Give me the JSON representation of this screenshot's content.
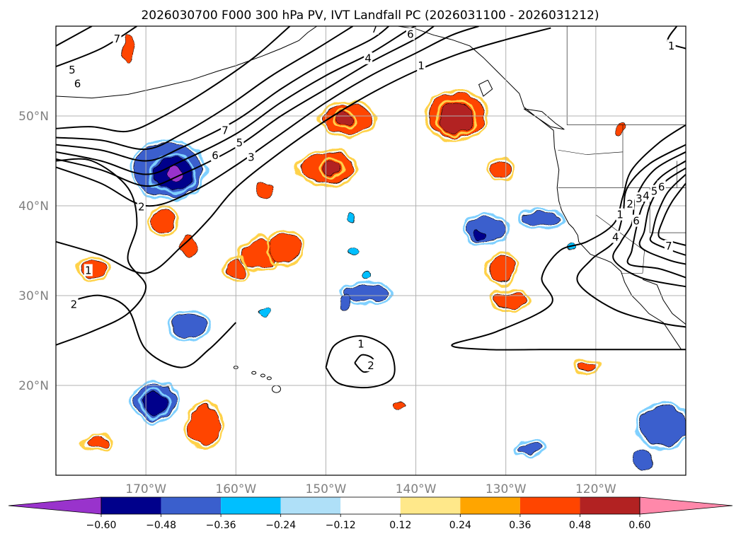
{
  "chart_data": {
    "type": "heatmap",
    "title": "2026030700 F000 300 hPa PV, IVT Landfall PC (2026031100 - 2026031212)",
    "xlabel": "",
    "ylabel": "",
    "lon_range": [
      -180,
      -110
    ],
    "lat_range": [
      10,
      60
    ],
    "lon_ticks": [
      -170,
      -160,
      -150,
      -140,
      -130,
      -120
    ],
    "lon_tick_labels": [
      "170°W",
      "160°W",
      "150°W",
      "140°W",
      "130°W",
      "120°W"
    ],
    "lat_ticks": [
      20,
      30,
      40,
      50
    ],
    "lat_tick_labels": [
      "20°N",
      "30°N",
      "40°N",
      "50°N"
    ],
    "grid": true,
    "colorbar": {
      "orientation": "horizontal",
      "placement": "bottom",
      "extend": "both",
      "levels": [
        -0.6,
        -0.48,
        -0.36,
        -0.24,
        -0.12,
        0.12,
        0.24,
        0.36,
        0.48,
        0.6
      ],
      "tick_labels": [
        "−0.60",
        "−0.48",
        "−0.36",
        "−0.24",
        "−0.12",
        "0.12",
        "0.24",
        "0.36",
        "0.48",
        "0.60"
      ],
      "colors": [
        "#9933cc",
        "#00008b",
        "#3a5fcd",
        "#00bfff",
        "#afe0f8",
        "#ffffff",
        "#ffe88a",
        "#ffa500",
        "#ff4500",
        "#b22222",
        "#ff88aa"
      ]
    },
    "contour_labels": [
      {
        "text": "7",
        "lon": -173.2,
        "lat": 58.6
      },
      {
        "text": "5",
        "lon": -178.2,
        "lat": 55.1
      },
      {
        "text": "6",
        "lon": -177.6,
        "lat": 53.6
      },
      {
        "text": "7",
        "lon": -161.2,
        "lat": 48.4
      },
      {
        "text": "5",
        "lon": -159.6,
        "lat": 47.0
      },
      {
        "text": "6",
        "lon": -162.3,
        "lat": 45.6
      },
      {
        "text": "3",
        "lon": -158.3,
        "lat": 45.4
      },
      {
        "text": "2",
        "lon": -170.5,
        "lat": 39.9
      },
      {
        "text": "1",
        "lon": -176.4,
        "lat": 32.8
      },
      {
        "text": "2",
        "lon": -178.0,
        "lat": 29.0
      },
      {
        "text": "4",
        "lon": -145.3,
        "lat": 56.4
      },
      {
        "text": "1",
        "lon": -139.4,
        "lat": 55.6
      },
      {
        "text": "7",
        "lon": -144.6,
        "lat": 59.7
      },
      {
        "text": "6",
        "lon": -140.6,
        "lat": 59.1
      },
      {
        "text": "1",
        "lon": -146.1,
        "lat": 24.6
      },
      {
        "text": "2",
        "lon": -145.0,
        "lat": 22.2
      },
      {
        "text": "1",
        "lon": -111.6,
        "lat": 57.8
      },
      {
        "text": "1",
        "lon": -117.3,
        "lat": 39.0
      },
      {
        "text": "2",
        "lon": -116.2,
        "lat": 40.2
      },
      {
        "text": "3",
        "lon": -115.2,
        "lat": 40.8
      },
      {
        "text": "4",
        "lon": -114.4,
        "lat": 41.1
      },
      {
        "text": "5",
        "lon": -113.5,
        "lat": 41.6
      },
      {
        "text": "6",
        "lon": -112.7,
        "lat": 42.1
      },
      {
        "text": "4",
        "lon": -117.8,
        "lat": 36.5
      },
      {
        "text": "6",
        "lon": -115.5,
        "lat": 38.3
      },
      {
        "text": "7",
        "lon": -111.9,
        "lat": 35.5
      }
    ],
    "pv_contours": [
      {
        "level": 1,
        "points": [
          [
            -180,
            36.0
          ],
          [
            -175,
            34.5
          ],
          [
            -170,
            32.5
          ],
          [
            -166,
            35.5
          ],
          [
            -163,
            38.5
          ],
          [
            -160,
            42
          ],
          [
            -155,
            46
          ],
          [
            -150,
            49.5
          ],
          [
            -145,
            52.5
          ],
          [
            -140,
            55
          ],
          [
            -135,
            57
          ],
          [
            -130,
            58.5
          ],
          [
            -125,
            59.8
          ]
        ]
      },
      {
        "level": 2,
        "points": [
          [
            -180,
            44.3
          ],
          [
            -175,
            42.5
          ],
          [
            -170,
            40
          ],
          [
            -165,
            41.5
          ],
          [
            -160,
            44.5
          ],
          [
            -155,
            48
          ],
          [
            -150,
            51.5
          ],
          [
            -145,
            54.5
          ],
          [
            -140,
            57
          ],
          [
            -136,
            59
          ],
          [
            -133,
            60
          ]
        ]
      },
      {
        "level": 3,
        "points": [
          [
            -180,
            45.2
          ],
          [
            -175,
            44
          ],
          [
            -170,
            42.2
          ],
          [
            -166,
            43.5
          ],
          [
            -160,
            46.5
          ],
          [
            -155,
            50
          ],
          [
            -150,
            53
          ],
          [
            -145,
            56
          ],
          [
            -140,
            58.6
          ],
          [
            -138,
            60
          ]
        ]
      },
      {
        "level": 4,
        "points": [
          [
            -180,
            46.0
          ],
          [
            -175,
            45
          ],
          [
            -170,
            43.5
          ],
          [
            -166,
            45
          ],
          [
            -160,
            48
          ],
          [
            -155,
            51.5
          ],
          [
            -150,
            54.5
          ],
          [
            -145,
            57
          ],
          [
            -141,
            59.5
          ],
          [
            -140,
            60
          ]
        ]
      },
      {
        "level": 5,
        "points": [
          [
            -180,
            46.8
          ],
          [
            -175,
            46.2
          ],
          [
            -170,
            45
          ],
          [
            -166,
            46.5
          ],
          [
            -160,
            49.5
          ],
          [
            -155,
            53
          ],
          [
            -150,
            56
          ],
          [
            -145,
            58.5
          ],
          [
            -143,
            60
          ]
        ]
      },
      {
        "level": 6,
        "points": [
          [
            -180,
            47.6
          ],
          [
            -175,
            47.3
          ],
          [
            -170,
            46.3
          ],
          [
            -166,
            48
          ],
          [
            -161,
            51
          ],
          [
            -156,
            54.5
          ],
          [
            -151,
            57.5
          ],
          [
            -147,
            60
          ]
        ]
      },
      {
        "level": 7,
        "points": [
          [
            -180,
            48.6
          ],
          [
            -176,
            48.8
          ],
          [
            -172,
            48.3
          ],
          [
            -168,
            50
          ],
          [
            -163,
            53
          ],
          [
            -158,
            56.5
          ],
          [
            -154,
            60
          ]
        ]
      },
      {
        "level": 1,
        "points": [
          [
            -180,
            24.5
          ],
          [
            -176,
            26
          ],
          [
            -172,
            28
          ],
          [
            -170,
            31
          ],
          [
            -172,
            34
          ],
          [
            -171,
            38
          ],
          [
            -172,
            42
          ],
          [
            -176,
            45
          ],
          [
            -180,
            45
          ]
        ]
      },
      {
        "level": 2,
        "points": [
          [
            -178,
            29.5
          ],
          [
            -175,
            30
          ],
          [
            -172,
            28.5
          ],
          [
            -170,
            24
          ],
          [
            -166,
            22
          ],
          [
            -163,
            24
          ],
          [
            -160,
            27
          ]
        ]
      },
      {
        "level": 6,
        "points": [
          [
            -180,
            55.5
          ],
          [
            -175,
            57.5
          ],
          [
            -171,
            60
          ]
        ]
      },
      {
        "level": 5,
        "points": [
          [
            -180,
            57.8
          ],
          [
            -176,
            60
          ]
        ]
      },
      {
        "level": 1,
        "points": [
          [
            -150,
            22
          ],
          [
            -149,
            24.5
          ],
          [
            -146,
            25.5
          ],
          [
            -143,
            24
          ],
          [
            -142.5,
            21
          ],
          [
            -145,
            19.8
          ],
          [
            -148.5,
            20.2
          ],
          [
            -150,
            22
          ]
        ]
      },
      {
        "level": 2,
        "points": [
          [
            -146.8,
            22.5
          ],
          [
            -146,
            23.4
          ],
          [
            -144.8,
            23.0
          ],
          [
            -144.7,
            22.0
          ],
          [
            -145.8,
            21.5
          ],
          [
            -146.8,
            22.5
          ]
        ]
      },
      {
        "level": 1,
        "points": [
          [
            -110,
            49
          ],
          [
            -113,
            47
          ],
          [
            -116,
            44
          ],
          [
            -117,
            41
          ],
          [
            -118,
            38
          ],
          [
            -121,
            36
          ],
          [
            -124,
            35
          ],
          [
            -126,
            32
          ],
          [
            -125,
            29
          ],
          [
            -131,
            26
          ],
          [
            -136,
            24.5
          ],
          [
            -132,
            24
          ],
          [
            -125,
            24
          ],
          [
            -119,
            24
          ],
          [
            -115,
            24
          ],
          [
            -110,
            24
          ]
        ]
      },
      {
        "level": 2,
        "points": [
          [
            -110,
            46.8
          ],
          [
            -114,
            44.7
          ],
          [
            -116.5,
            42
          ],
          [
            -117,
            39
          ],
          [
            -118,
            36
          ],
          [
            -120.5,
            34
          ],
          [
            -122,
            31.5
          ],
          [
            -118,
            28.5
          ],
          [
            -113,
            27
          ],
          [
            -110,
            26.5
          ]
        ]
      },
      {
        "level": 3,
        "points": [
          [
            -110,
            46
          ],
          [
            -113.5,
            44
          ],
          [
            -115.5,
            41
          ],
          [
            -116,
            38
          ],
          [
            -117.2,
            36
          ],
          [
            -118,
            34
          ],
          [
            -115,
            32
          ],
          [
            -110,
            31
          ]
        ]
      },
      {
        "level": 4,
        "points": [
          [
            -110,
            45
          ],
          [
            -113,
            43
          ],
          [
            -114.8,
            40
          ],
          [
            -115.5,
            37.5
          ],
          [
            -116,
            35
          ],
          [
            -116.3,
            33.5
          ],
          [
            -113,
            33
          ],
          [
            -110,
            32
          ]
        ]
      },
      {
        "level": 5,
        "points": [
          [
            -110,
            44.2
          ],
          [
            -112.5,
            42.5
          ],
          [
            -114,
            40
          ],
          [
            -114.6,
            37.2
          ],
          [
            -115,
            35.4
          ],
          [
            -112,
            34
          ],
          [
            -110,
            33.5
          ]
        ]
      },
      {
        "level": 6,
        "points": [
          [
            -110,
            43.5
          ],
          [
            -112,
            41.5
          ],
          [
            -113.2,
            39
          ],
          [
            -113.7,
            37
          ],
          [
            -113.8,
            36
          ],
          [
            -111.5,
            35
          ],
          [
            -110,
            34.5
          ]
        ]
      },
      {
        "level": 7,
        "points": [
          [
            -110,
            42.5
          ],
          [
            -111.5,
            40.5
          ],
          [
            -112.5,
            38.5
          ],
          [
            -113,
            36.6
          ],
          [
            -111.5,
            36
          ],
          [
            -110,
            35.6
          ]
        ]
      },
      {
        "level": 1,
        "points": [
          [
            -111,
            60
          ],
          [
            -112,
            58.3
          ],
          [
            -110,
            57.5
          ]
        ]
      }
    ],
    "ivt_blobs": [
      {
        "value": -0.4,
        "lon": -167.5,
        "lat": 44.0,
        "rx": 3.8,
        "ry": 3.0
      },
      {
        "value": -0.55,
        "lon": -167.0,
        "lat": 43.6,
        "rx": 2.2,
        "ry": 1.8
      },
      {
        "value": -0.65,
        "lon": -166.8,
        "lat": 43.6,
        "rx": 0.8,
        "ry": 0.7
      },
      {
        "value": 0.4,
        "lon": -135.5,
        "lat": 50.0,
        "rx": 3.2,
        "ry": 2.5
      },
      {
        "value": 0.5,
        "lon": -135.5,
        "lat": 49.7,
        "rx": 2.0,
        "ry": 1.6
      },
      {
        "value": 0.4,
        "lon": -147.6,
        "lat": 49.6,
        "rx": 2.8,
        "ry": 1.6
      },
      {
        "value": 0.5,
        "lon": -147.8,
        "lat": 49.7,
        "rx": 1.0,
        "ry": 0.6
      },
      {
        "value": 0.4,
        "lon": -149.8,
        "lat": 44.2,
        "rx": 3.0,
        "ry": 1.7
      },
      {
        "value": 0.5,
        "lon": -149.3,
        "lat": 44.2,
        "rx": 1.1,
        "ry": 0.8
      },
      {
        "value": 0.4,
        "lon": -130.6,
        "lat": 44.0,
        "rx": 1.0,
        "ry": 1.0
      },
      {
        "value": 0.4,
        "lon": -168.0,
        "lat": 38.2,
        "rx": 1.2,
        "ry": 1.2
      },
      {
        "value": 0.4,
        "lon": -165.2,
        "lat": 35.5,
        "rx": 0.8,
        "ry": 1.3
      },
      {
        "value": 0.4,
        "lon": -157.3,
        "lat": 34.6,
        "rx": 2.2,
        "ry": 1.6
      },
      {
        "value": 0.4,
        "lon": -154.5,
        "lat": 35.4,
        "rx": 1.7,
        "ry": 1.7
      },
      {
        "value": 0.4,
        "lon": -160.0,
        "lat": 33.0,
        "rx": 1.0,
        "ry": 1.0
      },
      {
        "value": 0.4,
        "lon": -157.0,
        "lat": 41.7,
        "rx": 0.9,
        "ry": 0.9
      },
      {
        "value": 0.4,
        "lon": -130.5,
        "lat": 33.0,
        "rx": 1.4,
        "ry": 1.5
      },
      {
        "value": 0.4,
        "lon": -129.5,
        "lat": 29.5,
        "rx": 1.8,
        "ry": 0.9
      },
      {
        "value": 0.4,
        "lon": -163.5,
        "lat": 15.5,
        "rx": 1.8,
        "ry": 2.2
      },
      {
        "value": 0.4,
        "lon": -175.8,
        "lat": 33.0,
        "rx": 1.5,
        "ry": 0.9
      },
      {
        "value": 0.4,
        "lon": -175.5,
        "lat": 13.7,
        "rx": 1.3,
        "ry": 0.6
      },
      {
        "value": 0.4,
        "lon": -121.0,
        "lat": 22.1,
        "rx": 1.0,
        "ry": 0.5
      },
      {
        "value": 0.4,
        "lon": -141.8,
        "lat": 17.8,
        "rx": 0.7,
        "ry": 0.5
      },
      {
        "value": 0.4,
        "lon": -172.0,
        "lat": 57.5,
        "rx": 0.5,
        "ry": 1.4
      },
      {
        "value": 0.4,
        "lon": -117.2,
        "lat": 48.5,
        "rx": 0.5,
        "ry": 0.5
      },
      {
        "value": -0.4,
        "lon": -132.2,
        "lat": 37.4,
        "rx": 2.2,
        "ry": 1.4
      },
      {
        "value": -0.55,
        "lon": -132.8,
        "lat": 36.8,
        "rx": 0.6,
        "ry": 0.5
      },
      {
        "value": -0.4,
        "lon": -126.0,
        "lat": 38.5,
        "rx": 2.2,
        "ry": 0.8
      },
      {
        "value": -0.4,
        "lon": -145.5,
        "lat": 30.3,
        "rx": 2.6,
        "ry": 0.9
      },
      {
        "value": -0.4,
        "lon": -147.8,
        "lat": 29.3,
        "rx": 0.7,
        "ry": 0.9
      },
      {
        "value": -0.4,
        "lon": -165.2,
        "lat": 26.7,
        "rx": 1.9,
        "ry": 1.3
      },
      {
        "value": -0.4,
        "lon": -169.0,
        "lat": 18.2,
        "rx": 2.2,
        "ry": 2.0
      },
      {
        "value": -0.55,
        "lon": -169.0,
        "lat": 18.0,
        "rx": 1.2,
        "ry": 1.2
      },
      {
        "value": -0.4,
        "lon": -112.5,
        "lat": 15.5,
        "rx": 2.6,
        "ry": 2.2
      },
      {
        "value": -0.4,
        "lon": -114.8,
        "lat": 11.8,
        "rx": 0.9,
        "ry": 1.2
      },
      {
        "value": -0.4,
        "lon": -127.3,
        "lat": 13.0,
        "rx": 1.3,
        "ry": 0.6
      },
      {
        "value": -0.3,
        "lon": -147.2,
        "lat": 38.8,
        "rx": 0.4,
        "ry": 0.5
      },
      {
        "value": -0.3,
        "lon": -147.0,
        "lat": 34.8,
        "rx": 0.6,
        "ry": 0.4
      },
      {
        "value": -0.3,
        "lon": -145.6,
        "lat": 32.3,
        "rx": 0.5,
        "ry": 0.4
      },
      {
        "value": -0.3,
        "lon": -156.8,
        "lat": 28.2,
        "rx": 0.7,
        "ry": 0.5
      },
      {
        "value": -0.3,
        "lon": -122.8,
        "lat": 35.4,
        "rx": 0.5,
        "ry": 0.4
      }
    ]
  }
}
